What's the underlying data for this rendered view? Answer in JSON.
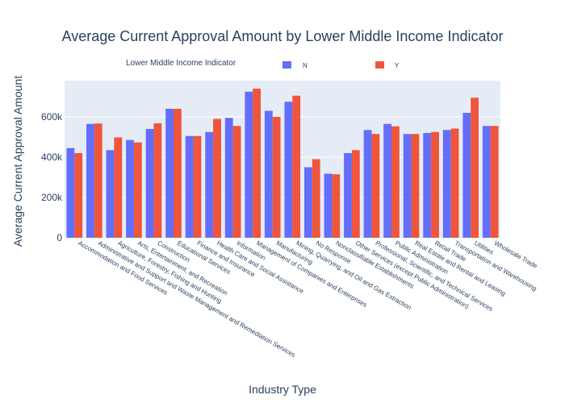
{
  "chart_data": {
    "type": "bar",
    "title": "Average Current Approval Amount by Lower Middle Income Indicator",
    "xlabel": "Industry Type",
    "ylabel": "Average Current Approval Amount",
    "ylim": [
      0,
      780000
    ],
    "yticks": [
      0,
      200000,
      400000,
      600000
    ],
    "ytick_labels": [
      "0",
      "200k",
      "400k",
      "600k"
    ],
    "legend": {
      "title": "Lower Middle Income Indicator",
      "placement": "top"
    },
    "grid": true,
    "categories": [
      "Accommodation and Food Services",
      "Administrative and Support and Waste Management and Remediation Services",
      "Agriculture, Forestry, Fishing and Hunting",
      "Arts, Entertainment, and Recreation",
      "Construction",
      "Educational Services",
      "Finance and Insurance",
      "Health Care and Social Assistance",
      "Information",
      "Management of Companies and Enterprises",
      "Manufacturing",
      "Mining, Quarrying, and Oil and Gas Extraction",
      "No Response",
      "Nonclassifiable Establishments",
      "Other Services (except Public Administration)",
      "Professional, Scientific, and Technical Services",
      "Public Administration",
      "Real Estate and Rental and Leasing",
      "Retail Trade",
      "Transportation and Warehousing",
      "Utilities",
      "Wholesale Trade"
    ],
    "series": [
      {
        "name": "N",
        "color": "#636efa",
        "values": [
          445000,
          565000,
          435000,
          485000,
          540000,
          640000,
          505000,
          525000,
          595000,
          725000,
          630000,
          675000,
          350000,
          318000,
          420000,
          535000,
          565000,
          515000,
          520000,
          535000,
          620000,
          555000
        ]
      },
      {
        "name": "Y",
        "color": "#ef553b",
        "values": [
          420000,
          567000,
          498000,
          473000,
          568000,
          640000,
          505000,
          590000,
          555000,
          740000,
          600000,
          705000,
          390000,
          315000,
          435000,
          515000,
          553000,
          515000,
          525000,
          542000,
          695000,
          555000
        ]
      }
    ]
  }
}
